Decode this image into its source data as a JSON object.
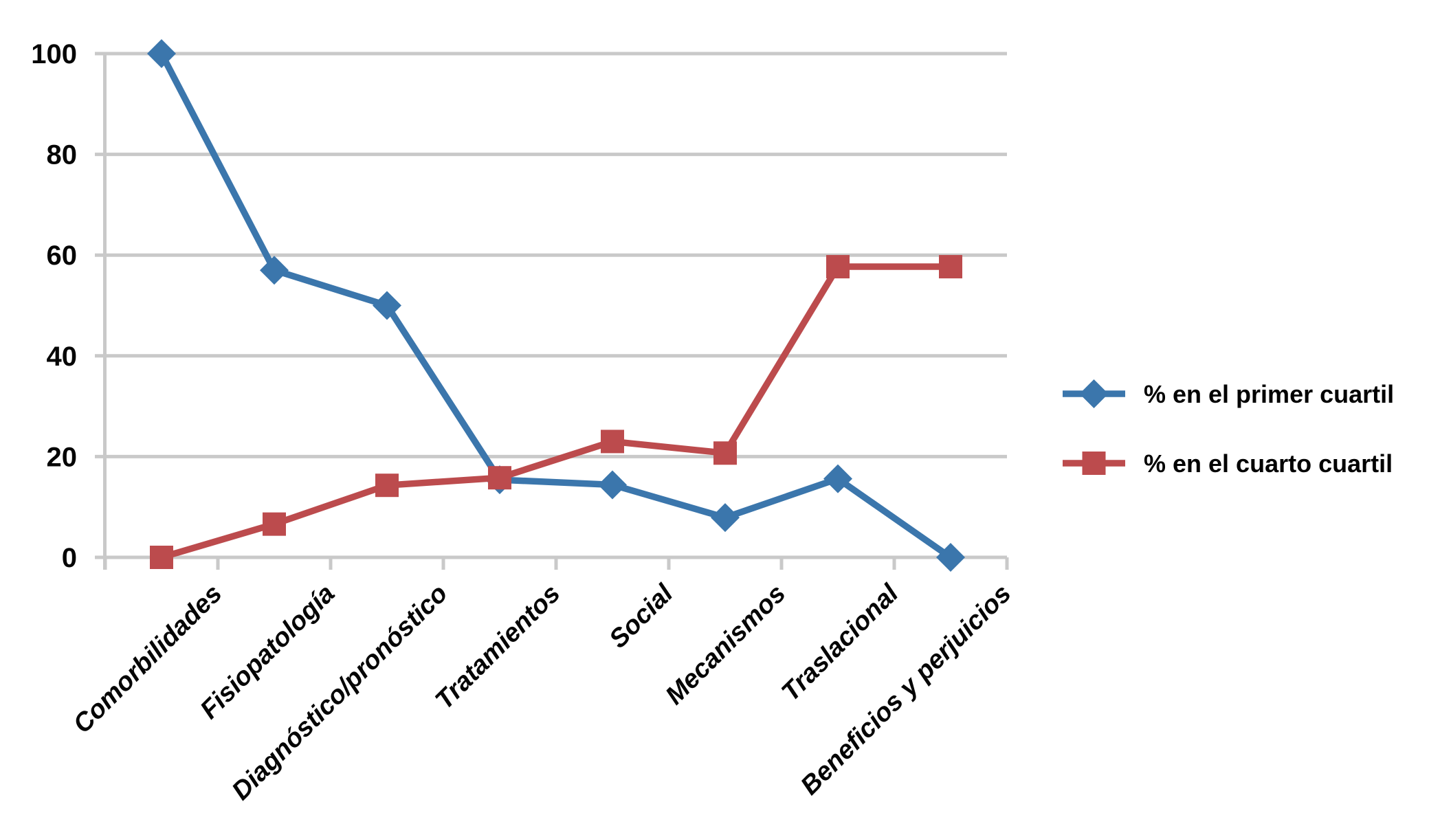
{
  "chart_data": {
    "type": "line",
    "title": "",
    "xlabel": "",
    "ylabel": "",
    "categories": [
      "Comorbilidades",
      "Fisiopatología",
      "Diagnóstico/pronóstico",
      "Tratamientos",
      "Social",
      "Mecanismos",
      "Traslacional",
      "Beneficios y perjuicios"
    ],
    "series": [
      {
        "name": "% en el primer cuartil",
        "marker": "diamond",
        "color": "#3B76AC",
        "values": [
          100,
          57,
          50,
          15.4,
          14.4,
          7.9,
          15.6,
          0
        ]
      },
      {
        "name": "% en el cuarto cuartil",
        "marker": "square",
        "color": "#BC4B4D",
        "values": [
          0,
          6.6,
          14.3,
          15.8,
          23,
          20.7,
          57.7,
          57.7
        ]
      }
    ],
    "ylim": [
      0,
      100
    ],
    "yticks": [
      0,
      20,
      40,
      60,
      80,
      100
    ],
    "grid": "horizontal",
    "gridline_color": "#C9C9C9",
    "axis_color": "#C9C9C9",
    "text_color": "#050505",
    "background_color": "#FFFFFF",
    "legend_position": "right"
  }
}
